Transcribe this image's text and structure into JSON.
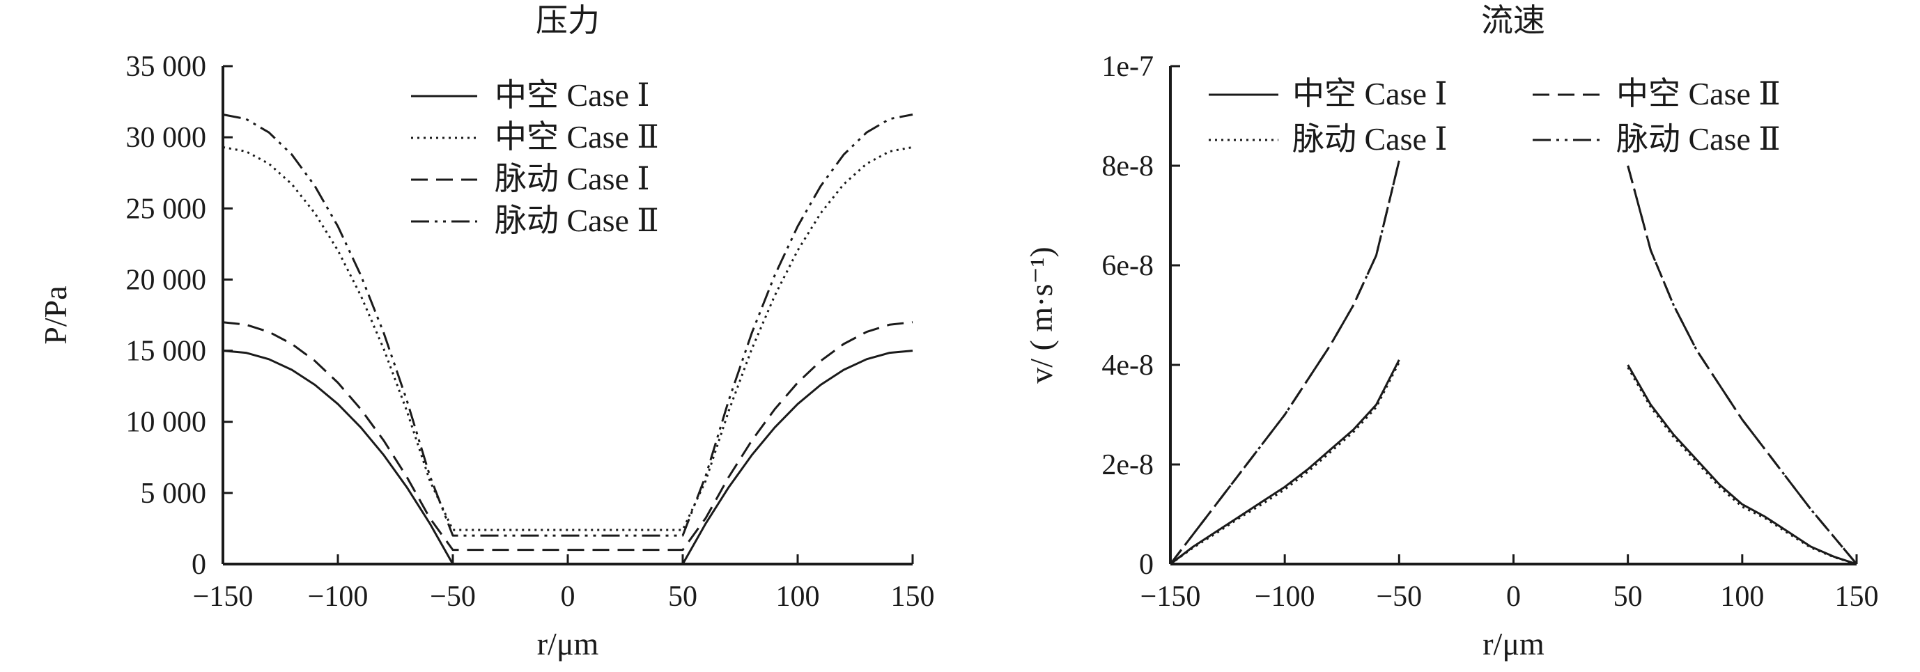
{
  "chart_data": [
    {
      "type": "line",
      "title": "压力",
      "xlabel": "r/μm",
      "ylabel": "P/Pa",
      "xlim": [
        -150,
        150
      ],
      "ylim": [
        0,
        35000
      ],
      "xticks": [
        -150,
        -100,
        -50,
        0,
        50,
        100,
        150
      ],
      "xtick_labels": [
        "−150",
        "−100",
        "−50",
        "0",
        "50",
        "100",
        "150"
      ],
      "yticks": [
        0,
        5000,
        10000,
        15000,
        20000,
        25000,
        30000,
        35000
      ],
      "ytick_labels": [
        "0",
        "5 000",
        "10 000",
        "15 000",
        "20 000",
        "25 000",
        "30 000",
        "35 000"
      ],
      "grid": false,
      "legend_position": "top-center",
      "series": [
        {
          "name": "中空 Case Ⅰ",
          "style": "solid",
          "x": [
            -150,
            -140,
            -130,
            -120,
            -110,
            -100,
            -90,
            -80,
            -70,
            -60,
            -50,
            50,
            60,
            70,
            80,
            90,
            100,
            110,
            120,
            130,
            140,
            150
          ],
          "y": [
            15000,
            14850,
            14400,
            13650,
            12600,
            11250,
            9600,
            7650,
            5400,
            2850,
            0,
            0,
            2850,
            5400,
            7650,
            9600,
            11250,
            12600,
            13650,
            14400,
            14850,
            15000
          ]
        },
        {
          "name": "中空 Case Ⅱ",
          "style": "dotted",
          "x": [
            -150,
            -140,
            -130,
            -120,
            -110,
            -100,
            -90,
            -80,
            -70,
            -60,
            -50,
            50,
            60,
            70,
            80,
            90,
            100,
            110,
            120,
            130,
            140,
            150
          ],
          "y": [
            29300,
            29010,
            28140,
            26700,
            24660,
            22050,
            18860,
            15100,
            10760,
            5860,
            2400,
            2400,
            5860,
            10760,
            15100,
            18860,
            22050,
            24660,
            26700,
            28140,
            29010,
            29300
          ]
        },
        {
          "name": "脉动 Case Ⅰ",
          "style": "dashed",
          "x": [
            -150,
            -140,
            -130,
            -120,
            -110,
            -100,
            -90,
            -80,
            -70,
            -60,
            -50,
            50,
            60,
            70,
            80,
            90,
            100,
            110,
            120,
            130,
            140,
            150
          ],
          "y": [
            17000,
            16830,
            16320,
            15470,
            14280,
            12750,
            10880,
            8670,
            6120,
            3230,
            1000,
            1000,
            3230,
            6120,
            8670,
            10880,
            12750,
            14280,
            15470,
            16320,
            16830,
            17000
          ]
        },
        {
          "name": "脉动 Case Ⅱ",
          "style": "dashdotdot",
          "x": [
            -150,
            -140,
            -130,
            -120,
            -110,
            -100,
            -90,
            -80,
            -70,
            -60,
            -50,
            50,
            60,
            70,
            80,
            90,
            100,
            110,
            120,
            130,
            140,
            150
          ],
          "y": [
            31600,
            31290,
            30340,
            28780,
            26570,
            23740,
            20290,
            16220,
            11510,
            6200,
            2000,
            2000,
            6200,
            11510,
            16220,
            20290,
            23740,
            26570,
            28780,
            30340,
            31290,
            31600
          ]
        }
      ]
    },
    {
      "type": "line",
      "title": "流速",
      "xlabel": "r/μm",
      "ylabel": "v/ ( m·s⁻¹)",
      "xlim": [
        -150,
        150
      ],
      "ylim": [
        0,
        1e-07
      ],
      "xticks": [
        -150,
        -100,
        -50,
        0,
        50,
        100,
        150
      ],
      "xtick_labels": [
        "−150",
        "−100",
        "−50",
        "0",
        "50",
        "100",
        "150"
      ],
      "yticks": [
        0,
        2e-08,
        4e-08,
        6e-08,
        8e-08,
        1e-07
      ],
      "ytick_labels": [
        "0",
        "2e-8",
        "4e-8",
        "6e-8",
        "8e-8",
        "1e-7"
      ],
      "grid": false,
      "legend_position": "top",
      "series": [
        {
          "name": "中空 Case Ⅰ",
          "style": "solid",
          "x": [
            -150,
            -140,
            -130,
            -120,
            -110,
            -100,
            -90,
            -80,
            -70,
            -60,
            -50,
            null,
            50,
            60,
            70,
            80,
            90,
            100,
            110,
            120,
            130,
            140,
            150
          ],
          "y": [
            0,
            3.5e-09,
            6.5e-09,
            9.5e-09,
            1.25e-08,
            1.55e-08,
            1.9e-08,
            2.3e-08,
            2.7e-08,
            3.2e-08,
            4.1e-08,
            null,
            4e-08,
            3.2e-08,
            2.6e-08,
            2.1e-08,
            1.6e-08,
            1.2e-08,
            9.5e-09,
            6.5e-09,
            3.5e-09,
            1.5e-09,
            0
          ]
        },
        {
          "name": "中空 Case Ⅱ",
          "style": "dashed",
          "x": [
            -150,
            -140,
            -130,
            -120,
            -110,
            -100,
            -90,
            -80,
            -70,
            -60,
            -50,
            null,
            50,
            60,
            70,
            80,
            90,
            100,
            110,
            120,
            130,
            140,
            150
          ],
          "y": [
            0,
            6e-09,
            1.2e-08,
            1.8e-08,
            2.4e-08,
            3e-08,
            3.7e-08,
            4.4e-08,
            5.2e-08,
            6.2e-08,
            8.1e-08,
            null,
            8e-08,
            6.3e-08,
            5.2e-08,
            4.3e-08,
            3.6e-08,
            2.9e-08,
            2.3e-08,
            1.7e-08,
            1.1e-08,
            5.5e-09,
            0
          ]
        },
        {
          "name": "脉动 Case Ⅰ",
          "style": "dotted",
          "x": [
            -150,
            -140,
            -130,
            -120,
            -110,
            -100,
            -90,
            -80,
            -70,
            -60,
            -50,
            null,
            50,
            60,
            70,
            80,
            90,
            100,
            110,
            120,
            130,
            140,
            150
          ],
          "y": [
            0,
            3.3e-09,
            6.2e-09,
            9.2e-09,
            1.2e-08,
            1.5e-08,
            1.85e-08,
            2.25e-08,
            2.65e-08,
            3.15e-08,
            4.05e-08,
            null,
            3.95e-08,
            3.15e-08,
            2.55e-08,
            2.05e-08,
            1.55e-08,
            1.15e-08,
            9.2e-09,
            6.2e-09,
            3.3e-09,
            1.4e-09,
            0
          ]
        },
        {
          "name": "脉动 Case Ⅱ",
          "style": "dashdotdot",
          "x": [
            -150,
            -140,
            -130,
            -120,
            -110,
            -100,
            -90,
            -80,
            -70,
            -60,
            -50,
            null,
            50,
            60,
            70,
            80,
            90,
            100,
            110,
            120,
            130,
            140,
            150
          ],
          "y": [
            0,
            6e-09,
            1.2e-08,
            1.8e-08,
            2.4e-08,
            3e-08,
            3.7e-08,
            4.4e-08,
            5.2e-08,
            6.2e-08,
            8.1e-08,
            null,
            8e-08,
            6.3e-08,
            5.2e-08,
            4.3e-08,
            3.6e-08,
            2.9e-08,
            2.3e-08,
            1.7e-08,
            1.1e-08,
            5.5e-09,
            0
          ]
        }
      ]
    }
  ]
}
